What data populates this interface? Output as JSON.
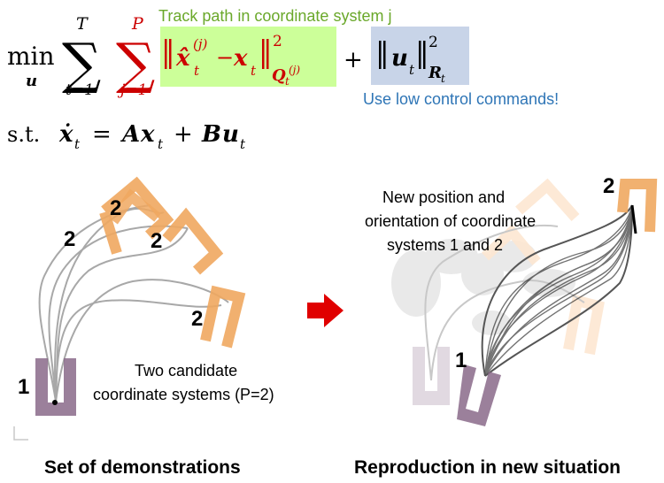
{
  "equation": {
    "min_label": "min",
    "min_var": "u",
    "sum1_top": "T",
    "sum1_bottom": "t=1",
    "sum2_top": "P",
    "sum2_bottom": "j=1",
    "term1_xhat": "x̂",
    "term1_sup": "(j)",
    "term1_sub": "t",
    "term1_minus": "−",
    "term1_x": "x",
    "term1_x_sub": "t",
    "term1_power": "2",
    "term1_Q": "Q",
    "term1_Q_sub": "t",
    "term1_Q_sup": "(j)",
    "plus": "+",
    "term2_u": "u",
    "term2_u_sub": "t",
    "term2_power": "2",
    "term2_R": "R",
    "term2_R_sub": "t",
    "st_label": "s.t.",
    "st_xdot": "ẋ",
    "st_xdot_sub": "t",
    "st_eq": "=",
    "st_A": "A",
    "st_x": "x",
    "st_x_sub": "t",
    "st_plus": "+",
    "st_B": "B",
    "st_u": "u",
    "st_u_sub": "t"
  },
  "annotations": {
    "track_path": "Track path in coordinate system j",
    "low_control": "Use low control commands!",
    "new_position_line1": "New position and",
    "new_position_line2": "orientation of coordinate",
    "new_position_line3": "systems 1 and 2",
    "two_candidate_line1": "Two candidate",
    "two_candidate_line2": "coordinate systems (P=2)"
  },
  "labels": {
    "frame1_left": "1",
    "frame2_a": "2",
    "frame2_b": "2",
    "frame2_c": "2",
    "frame2_d": "2",
    "frame1_right": "1",
    "frame2_right": "2"
  },
  "captions": {
    "left": "Set of demonstrations",
    "right": "Reproduction in new situation"
  },
  "colors": {
    "frame1": "#8a6a8a",
    "frame2": "#f0a860",
    "track_text": "#6aa82a",
    "low_text": "#2e75b6",
    "box_green": "#ccff99",
    "box_blue": "#c8d4e8",
    "equation_red": "#cc0000",
    "arrow": "#e00000"
  }
}
